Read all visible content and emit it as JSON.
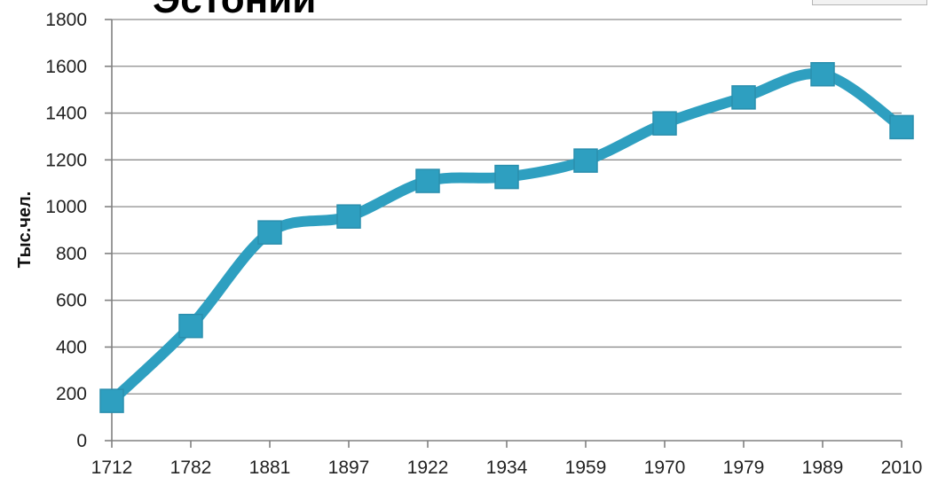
{
  "colors": {
    "series": "#2e9fc0",
    "grid": "#8c8c8c",
    "text": "#222222"
  },
  "chart_data": {
    "type": "line",
    "title": "Эстонии",
    "ylabel": "Тыс.чел.",
    "xlabel": "",
    "categories": [
      "1712",
      "1782",
      "1881",
      "1897",
      "1922",
      "1934",
      "1959",
      "1970",
      "1979",
      "1989",
      "2010"
    ],
    "series": [
      {
        "values": [
          170,
          490,
          890,
          958,
          1110,
          1127,
          1197,
          1356,
          1467,
          1566,
          1340
        ]
      }
    ],
    "ylim": [
      0,
      1800
    ],
    "yticks": [
      0,
      200,
      400,
      600,
      800,
      1000,
      1200,
      1400,
      1600,
      1800
    ],
    "grid": true,
    "legend": "none",
    "smooth": true,
    "marker": "square"
  }
}
